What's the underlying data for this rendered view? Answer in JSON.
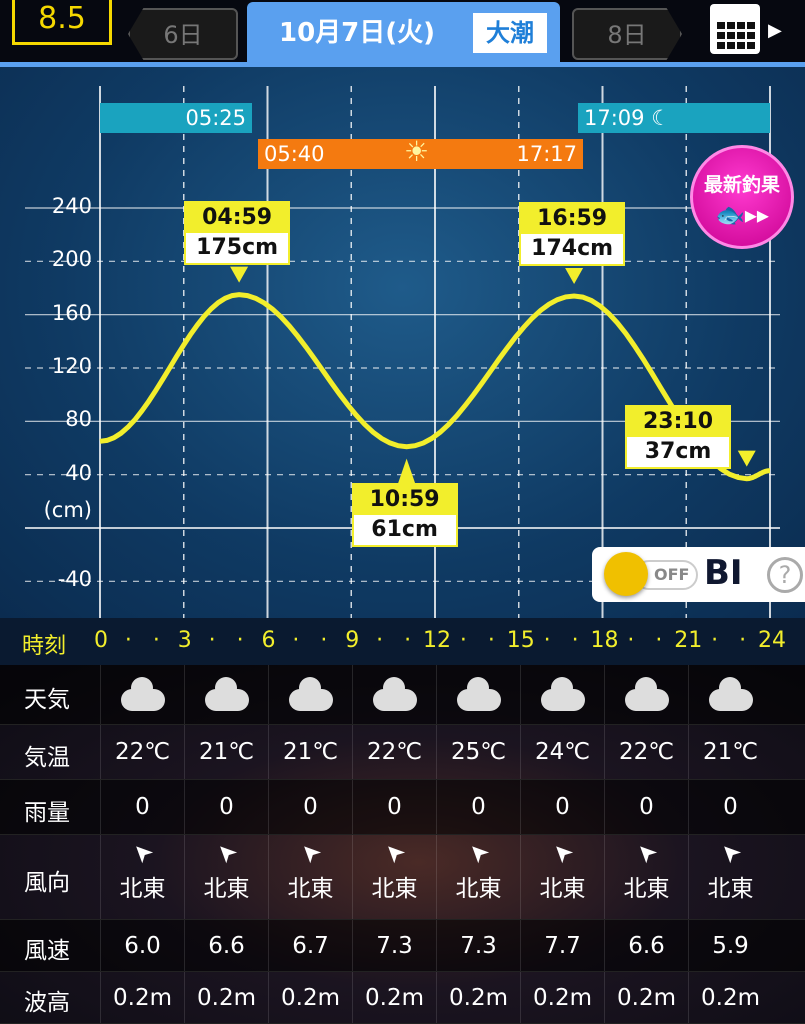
{
  "header": {
    "score": "8.5",
    "prev_day": "6日",
    "date": "10月7日(火)",
    "tide_type": "大潮",
    "next_day": "8日",
    "calendar_icon": "calendar-icon"
  },
  "chart_data": {
    "type": "line",
    "ylabel": "(cm)",
    "ylim": [
      -60,
      260
    ],
    "yticks": [
      "240",
      "200",
      "160",
      "120",
      "80",
      "40",
      "-40"
    ],
    "ytick_values": [
      240,
      200,
      160,
      120,
      80,
      40,
      -40
    ],
    "xlim": [
      0,
      24
    ],
    "x_title": "時刻",
    "xticks": [
      "0",
      "3",
      "6",
      "9",
      "12",
      "15",
      "18",
      "21",
      "24"
    ],
    "curve": [
      {
        "h": 0,
        "cm": 65
      },
      {
        "h": 4.983,
        "cm": 175
      },
      {
        "h": 10.983,
        "cm": 61
      },
      {
        "h": 16.983,
        "cm": 174
      },
      {
        "h": 23.167,
        "cm": 37
      },
      {
        "h": 24,
        "cm": 43
      }
    ],
    "extremes": [
      {
        "time": "04:59",
        "value": "175cm",
        "h": 4.983,
        "cm": 175,
        "pos": "above"
      },
      {
        "time": "10:59",
        "value": "61cm",
        "h": 10.983,
        "cm": 61,
        "pos": "below"
      },
      {
        "time": "16:59",
        "value": "174cm",
        "h": 16.983,
        "cm": 174,
        "pos": "above"
      },
      {
        "time": "23:10",
        "value": "37cm",
        "h": 23.167,
        "cm": 37,
        "pos": "above"
      }
    ],
    "moon": {
      "rise": "05:25",
      "set": "17:09"
    },
    "sun": {
      "rise": "05:40",
      "set": "17:17"
    },
    "grid": true,
    "line_color": "#f2ee2c"
  },
  "bi_toggle": {
    "state": "OFF",
    "label": "BI",
    "help": "?"
  },
  "table": {
    "labels": {
      "weather": "天気",
      "temp": "気温",
      "rain": "雨量",
      "wind_dir": "風向",
      "wind_speed": "風速",
      "wave": "波高"
    },
    "weather": [
      "cloudy",
      "cloudy",
      "cloudy",
      "cloudy",
      "cloudy",
      "cloudy",
      "cloudy",
      "cloudy"
    ],
    "temp": [
      "22℃",
      "21℃",
      "21℃",
      "22℃",
      "25℃",
      "24℃",
      "22℃",
      "21℃"
    ],
    "rain": [
      "0",
      "0",
      "0",
      "0",
      "0",
      "0",
      "0",
      "0"
    ],
    "wind_dir": [
      "北東",
      "北東",
      "北東",
      "北東",
      "北東",
      "北東",
      "北東",
      "北東"
    ],
    "wind_speed": [
      "6.0",
      "6.6",
      "6.7",
      "7.3",
      "7.3",
      "7.7",
      "6.6",
      "5.9"
    ],
    "wave": [
      "0.2m",
      "0.2m",
      "0.2m",
      "0.2m",
      "0.2m",
      "0.2m",
      "0.2m",
      "0.2m"
    ]
  },
  "badge": {
    "label": "最新釣果"
  }
}
